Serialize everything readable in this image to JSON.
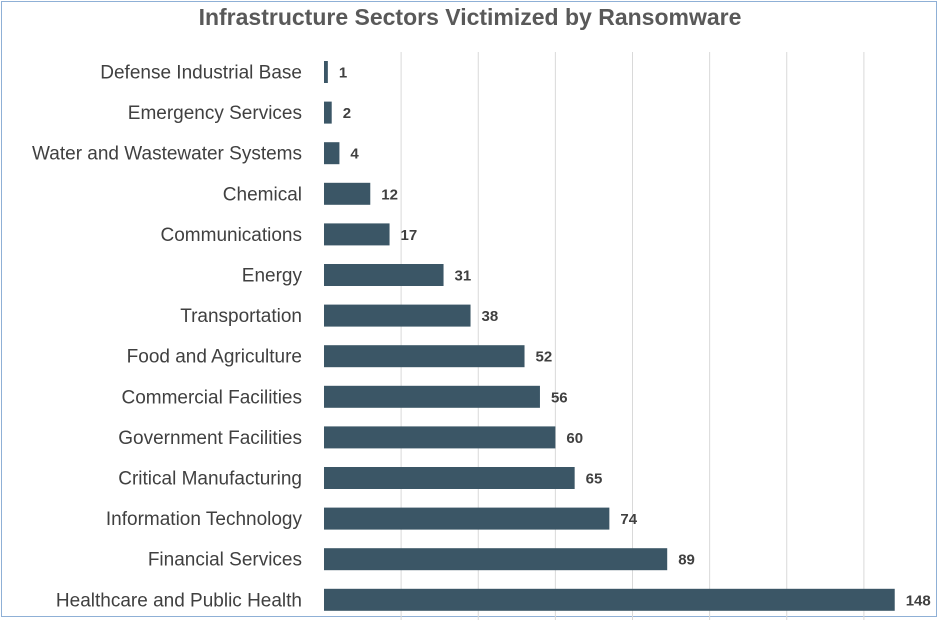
{
  "chart_data": {
    "type": "bar",
    "orientation": "horizontal",
    "title": "Infrastructure Sectors Victimized by Ransomware",
    "categories": [
      "Defense Industrial Base",
      "Emergency Services",
      "Water and Wastewater Systems",
      "Chemical",
      "Communications",
      "Energy",
      "Transportation",
      "Food and Agriculture",
      "Commercial Facilities",
      "Government Facilities",
      "Critical Manufacturing",
      "Information Technology",
      "Financial Services",
      "Healthcare and Public Health"
    ],
    "values": [
      1,
      2,
      4,
      12,
      17,
      31,
      38,
      52,
      56,
      60,
      65,
      74,
      89,
      148
    ],
    "xlim": [
      0,
      160
    ],
    "grid": true,
    "data_labels": true,
    "legend": false,
    "colors": {
      "bar": "#3b5666",
      "gridline": "#d9d9d9",
      "frame": "#8fb0d6",
      "title": "#595959",
      "text": "#404040"
    }
  }
}
